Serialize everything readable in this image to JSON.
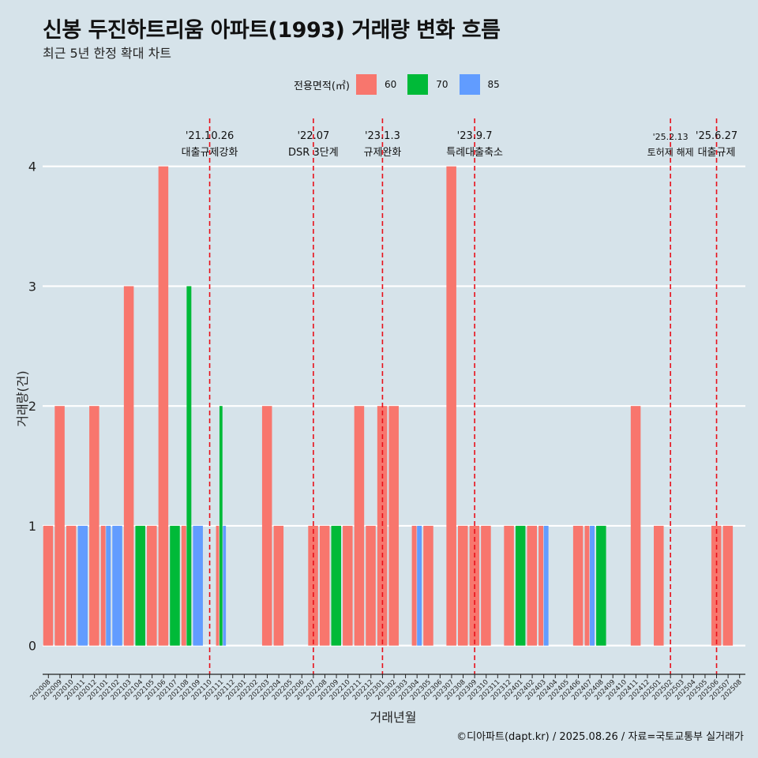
{
  "title": "신봉 두진하트리움 아파트(1993) 거래량 변화 흐름",
  "subtitle": "최근 5년 한정 확대 차트",
  "caption": "©디아파트(dapt.kr) / 2025.08.26 / 자료=국토교통부 실거래가",
  "legend": {
    "title": "전용면적(㎡)",
    "items": [
      {
        "label": "60",
        "color": "#f8766d"
      },
      {
        "label": "70",
        "color": "#00ba38"
      },
      {
        "label": "85",
        "color": "#619cff"
      }
    ]
  },
  "chart_data": {
    "type": "bar",
    "xlabel": "거래년월",
    "ylabel": "거래량(건)",
    "ylim": [
      -0.2,
      4.4
    ],
    "yticks": [
      0,
      1,
      2,
      3,
      4
    ],
    "grid": true,
    "categories": [
      "202008",
      "202009",
      "202010",
      "202011",
      "202012",
      "202101",
      "202102",
      "202103",
      "202104",
      "202105",
      "202106",
      "202107",
      "202108",
      "202109",
      "202110",
      "202111",
      "202112",
      "202201",
      "202202",
      "202203",
      "202204",
      "202205",
      "202206",
      "202207",
      "202208",
      "202209",
      "202210",
      "202211",
      "202212",
      "202301",
      "202302",
      "202303",
      "202304",
      "202305",
      "202306",
      "202307",
      "202308",
      "202309",
      "202310",
      "202311",
      "202312",
      "202401",
      "202402",
      "202403",
      "202404",
      "202405",
      "202406",
      "202407",
      "202408",
      "202409",
      "202410",
      "202411",
      "202412",
      "202501",
      "202502",
      "202503",
      "202504",
      "202505",
      "202506",
      "202507",
      "202508"
    ],
    "series": [
      {
        "name": "60",
        "color": "#f8766d",
        "points": [
          {
            "x": "202008",
            "y": 1
          },
          {
            "x": "202009",
            "y": 2
          },
          {
            "x": "202010",
            "y": 1
          },
          {
            "x": "202012",
            "y": 2
          },
          {
            "x": "202101",
            "y": 1
          },
          {
            "x": "202103",
            "y": 3
          },
          {
            "x": "202105",
            "y": 1
          },
          {
            "x": "202106",
            "y": 4
          },
          {
            "x": "202108",
            "y": 1
          },
          {
            "x": "202111",
            "y": 1
          },
          {
            "x": "202203",
            "y": 2
          },
          {
            "x": "202204",
            "y": 1
          },
          {
            "x": "202207",
            "y": 1
          },
          {
            "x": "202208",
            "y": 1
          },
          {
            "x": "202210",
            "y": 1
          },
          {
            "x": "202211",
            "y": 2
          },
          {
            "x": "202212",
            "y": 1
          },
          {
            "x": "202301",
            "y": 2
          },
          {
            "x": "202302",
            "y": 2
          },
          {
            "x": "202304",
            "y": 1
          },
          {
            "x": "202305",
            "y": 1
          },
          {
            "x": "202307",
            "y": 4
          },
          {
            "x": "202308",
            "y": 1
          },
          {
            "x": "202309",
            "y": 1
          },
          {
            "x": "202310",
            "y": 1
          },
          {
            "x": "202312",
            "y": 1
          },
          {
            "x": "202402",
            "y": 1
          },
          {
            "x": "202403",
            "y": 1
          },
          {
            "x": "202406",
            "y": 1
          },
          {
            "x": "202407",
            "y": 1
          },
          {
            "x": "202411",
            "y": 2
          },
          {
            "x": "202501",
            "y": 1
          },
          {
            "x": "202506",
            "y": 1
          },
          {
            "x": "202507",
            "y": 1
          }
        ]
      },
      {
        "name": "70",
        "color": "#00ba38",
        "points": [
          {
            "x": "202104",
            "y": 1
          },
          {
            "x": "202107",
            "y": 1
          },
          {
            "x": "202108",
            "y": 3
          },
          {
            "x": "202111",
            "y": 2
          },
          {
            "x": "202209",
            "y": 1
          },
          {
            "x": "202401",
            "y": 1
          },
          {
            "x": "202408",
            "y": 1
          }
        ]
      },
      {
        "name": "85",
        "color": "#619cff",
        "points": [
          {
            "x": "202011",
            "y": 1
          },
          {
            "x": "202101",
            "y": 1
          },
          {
            "x": "202102",
            "y": 1
          },
          {
            "x": "202109",
            "y": 1
          },
          {
            "x": "202111",
            "y": 1
          },
          {
            "x": "202304",
            "y": 1
          },
          {
            "x": "202403",
            "y": 1
          },
          {
            "x": "202407",
            "y": 1
          }
        ]
      }
    ],
    "annotations": [
      {
        "x": "202110",
        "date": "'21.10.26",
        "label": "대출규제강화"
      },
      {
        "x": "202207",
        "date": "'22.07",
        "label": "DSR 3단계"
      },
      {
        "x": "202301",
        "date": "'23.1.3",
        "label": "규제완화"
      },
      {
        "x": "202309",
        "date": "'23.9.7",
        "label": "특례대출축소"
      },
      {
        "x": "202502",
        "date": "'25.2.13",
        "label": "토허제 해제"
      },
      {
        "x": "202506",
        "date": "'25.6.27",
        "label": "대출규제"
      }
    ]
  }
}
